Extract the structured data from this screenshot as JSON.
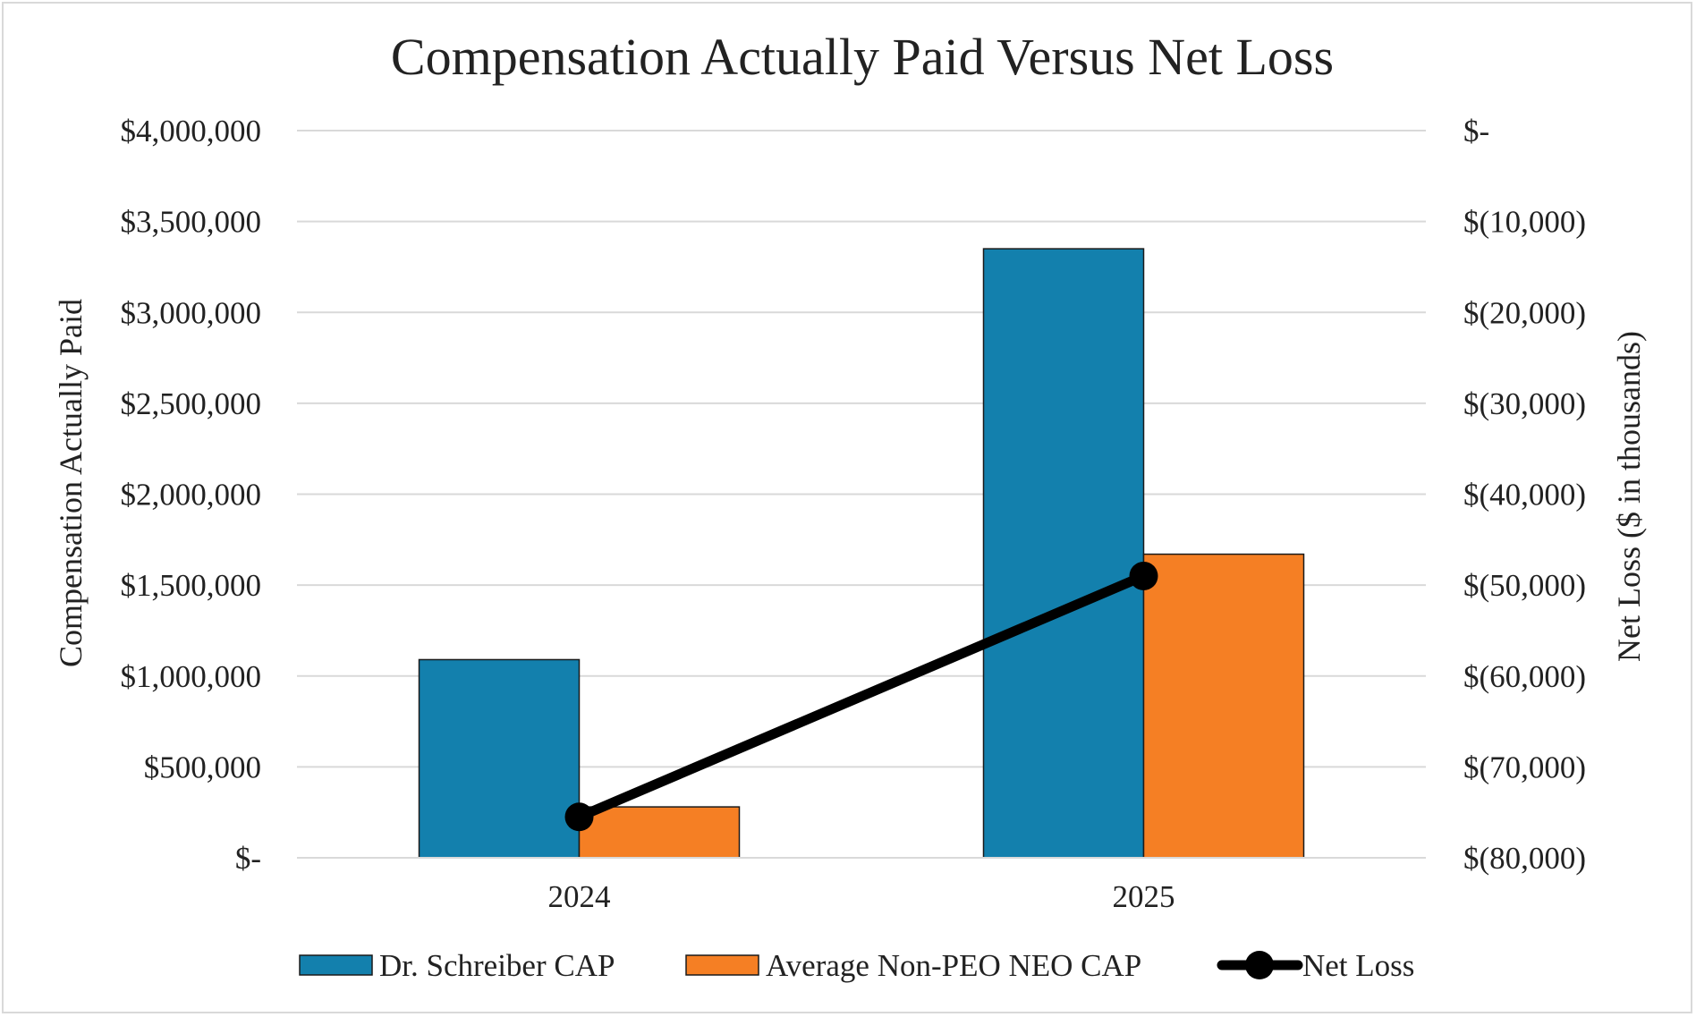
{
  "chart_data": {
    "type": "bar",
    "title": "Compensation Actually Paid Versus Net Loss",
    "categories": [
      "2024",
      "2025"
    ],
    "y_left": {
      "label": "Compensation Actually Paid",
      "lim": [
        0,
        4000000
      ],
      "tick_values": [
        0,
        500000,
        1000000,
        1500000,
        2000000,
        2500000,
        3000000,
        3500000,
        4000000
      ],
      "tick_labels": [
        "$-",
        "$500,000",
        "$1,000,000",
        "$1,500,000",
        "$2,000,000",
        "$2,500,000",
        "$3,000,000",
        "$3,500,000",
        "$4,000,000"
      ]
    },
    "y_right": {
      "label": "Net Loss ($ in thousands)",
      "lim": [
        -80000,
        0
      ],
      "tick_values": [
        -80000,
        -70000,
        -60000,
        -50000,
        -40000,
        -30000,
        -20000,
        -10000,
        0
      ],
      "tick_labels": [
        "$(80,000)",
        "$(70,000)",
        "$(60,000)",
        "$(50,000)",
        "$(40,000)",
        "$(30,000)",
        "$(20,000)",
        "$(10,000)",
        "$-"
      ]
    },
    "series": [
      {
        "name": "Dr. Schreiber CAP",
        "kind": "bar",
        "axis": "left",
        "color": "#1380ad",
        "values": [
          1090000,
          3350000
        ]
      },
      {
        "name": "Average Non-PEO NEO CAP",
        "kind": "bar",
        "axis": "left",
        "color": "#f57f24",
        "values": [
          280000,
          1670000
        ]
      },
      {
        "name": "Net Loss",
        "kind": "line",
        "axis": "right",
        "color": "#000000",
        "values": [
          -75500,
          -49000
        ]
      }
    ],
    "grid": true,
    "legend_position": "bottom"
  }
}
